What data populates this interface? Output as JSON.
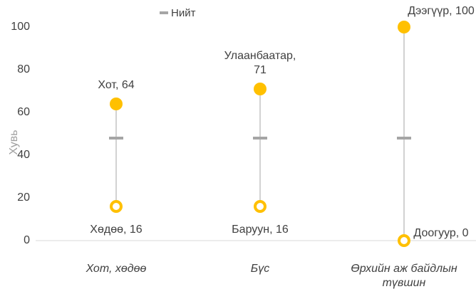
{
  "chart_data": {
    "type": "hilo",
    "y_label": "Хувь",
    "categories": [
      "Хот, хөдөө",
      "Бүс",
      "Өрхийн аж байдлын түвшин"
    ],
    "series": [
      {
        "name": "Нийт",
        "color": "#a5a5a5",
        "values": [
          48,
          48,
          48
        ]
      },
      {
        "color": "#ffc000",
        "values": [
          64,
          71,
          100
        ],
        "value_labels": [
          "Хот, 64",
          "Улаанбаатар, 71",
          "Дээгүүр, 100"
        ]
      },
      {
        "color": "#ffc000",
        "values": [
          16,
          16,
          0
        ],
        "value_labels": [
          "Хөдөө, 16",
          "Баруун, 16",
          "Доогуур, 0"
        ]
      }
    ],
    "ylim": [
      0,
      100
    ],
    "yticks": [
      0,
      20,
      40,
      60,
      80,
      100
    ],
    "legend": "top"
  }
}
